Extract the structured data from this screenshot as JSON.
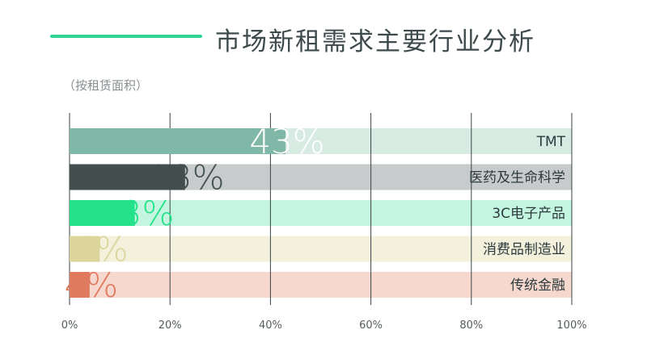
{
  "chart_data": {
    "type": "bar",
    "orientation": "horizontal",
    "title": "市场新租需求主要行业分析",
    "subtitle": "（按租赁面积）",
    "categories": [
      "TMT",
      "医药及生命科学",
      "3C电子产品",
      "消费品制造业",
      "传统金融"
    ],
    "values": [
      43,
      23,
      13,
      6,
      4
    ],
    "value_labels": [
      "43%",
      "23%",
      "13%",
      "6%",
      "4%"
    ],
    "xlim": [
      0,
      100
    ],
    "x_ticks": [
      "0%",
      "20%",
      "40%",
      "60%",
      "80%",
      "100%"
    ],
    "grid": true,
    "colors": {
      "bars": [
        "#7fb8a6",
        "#434f4f",
        "#24e28a",
        "#dcd59b",
        "#e07a5e"
      ],
      "tracks": [
        "#d7ebe3",
        "#c7cbcb",
        "#c4f5e0",
        "#f3f0dc",
        "#f6d8cf"
      ],
      "labels": [
        "#ffffff",
        "#434f4f",
        "#24e28a",
        "#dcd59b",
        "#e07a5e"
      ],
      "accent": "#2fd693"
    }
  }
}
